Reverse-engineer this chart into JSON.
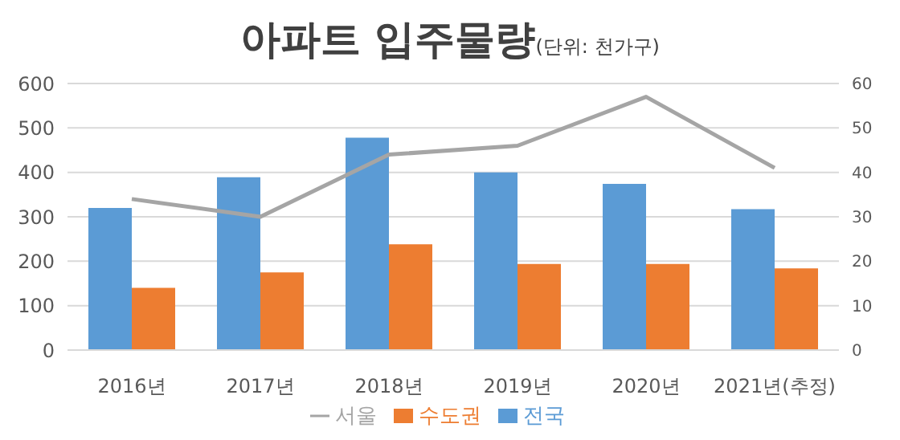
{
  "chart_data": {
    "type": "bar",
    "title": "아파트 입주물량",
    "subtitle": "(단위: 천가구)",
    "categories": [
      "2016년",
      "2017년",
      "2018년",
      "2019년",
      "2020년",
      "2021년(추정)"
    ],
    "series": [
      {
        "name": "전국",
        "color": "#5b9bd5",
        "values": [
          320,
          389,
          478,
          400,
          374,
          317
        ]
      },
      {
        "name": "수도권",
        "color": "#ed7d31",
        "values": [
          140,
          175,
          238,
          194,
          194,
          184
        ]
      },
      {
        "name": "서울",
        "type": "line",
        "axis": "y2",
        "color": "#a5a5a5",
        "values": [
          34,
          30,
          44,
          46,
          57,
          41
        ]
      }
    ],
    "ylim": [
      0,
      600
    ],
    "yticks": [
      0,
      100,
      200,
      300,
      400,
      500,
      600
    ],
    "y2lim": [
      0,
      60
    ],
    "y2ticks": [
      0,
      10,
      20,
      30,
      40,
      50,
      60
    ],
    "grid": "y",
    "legend": "bottom",
    "marker": "none"
  }
}
